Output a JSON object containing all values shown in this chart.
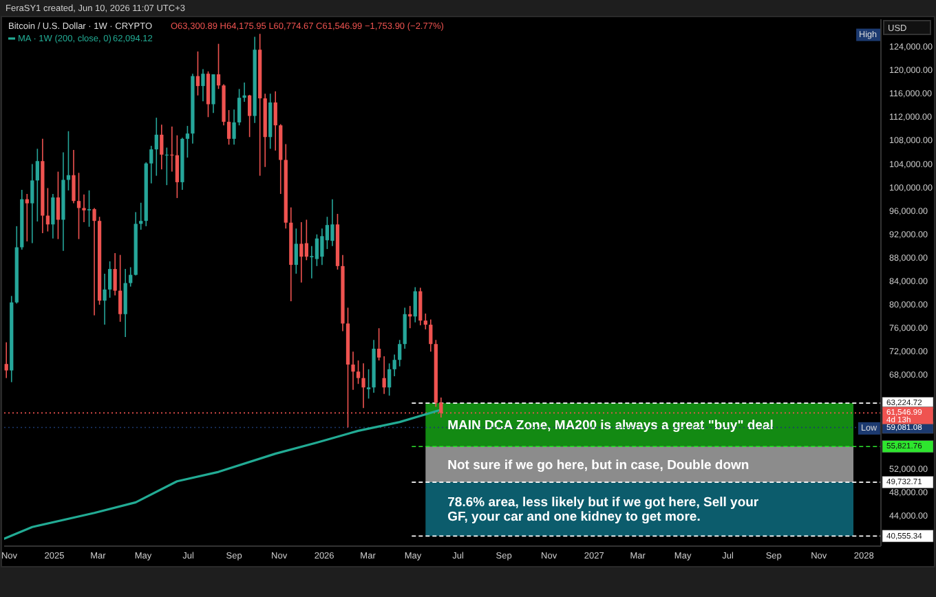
{
  "chart_data": {
    "type": "candlestick",
    "title": "Bitcoin / U.S. Dollar · 1W · CRYPTO",
    "subtitle": "O63,300.89 H64,175.95 L60,774.67 C61,546.99 −1,753.90 (−2.77%)",
    "x": [
      "2024-10-28",
      "2024-11-04",
      "2024-11-11",
      "2024-11-18",
      "2024-11-25",
      "2024-12-02",
      "2024-12-09",
      "2024-12-16",
      "2024-12-23",
      "2024-12-30",
      "2025-01-06",
      "2025-01-13",
      "2025-01-20",
      "2025-01-27",
      "2025-02-03",
      "2025-02-10",
      "2025-02-17",
      "2025-02-24",
      "2025-03-03",
      "2025-03-10",
      "2025-03-17",
      "2025-03-24",
      "2025-03-31",
      "2025-04-07",
      "2025-04-14",
      "2025-04-21",
      "2025-04-28",
      "2025-05-05",
      "2025-05-12",
      "2025-05-19",
      "2025-05-26",
      "2025-06-02",
      "2025-06-09",
      "2025-06-16",
      "2025-06-23",
      "2025-06-30",
      "2025-07-07",
      "2025-07-14",
      "2025-07-21",
      "2025-07-28",
      "2025-08-04",
      "2025-08-11",
      "2025-08-18",
      "2025-08-25",
      "2025-09-01",
      "2025-09-08",
      "2025-09-15",
      "2025-09-22",
      "2025-09-29",
      "2025-10-06",
      "2025-10-13",
      "2025-10-20",
      "2025-10-27",
      "2025-11-03",
      "2025-11-10",
      "2025-11-17",
      "2025-11-24",
      "2025-12-01",
      "2025-12-08",
      "2025-12-15",
      "2025-12-22",
      "2025-12-29",
      "2026-01-05",
      "2026-01-12",
      "2026-01-19",
      "2026-01-26",
      "2026-02-02",
      "2026-02-09",
      "2026-02-16",
      "2026-02-23",
      "2026-03-02",
      "2026-03-09",
      "2026-03-16",
      "2026-03-23",
      "2026-03-30",
      "2026-04-06",
      "2026-04-13",
      "2026-04-20",
      "2026-04-27",
      "2026-05-04",
      "2026-05-11",
      "2026-05-18",
      "2026-05-25",
      "2026-06-01",
      "2026-06-08"
    ],
    "ohlc": [
      [
        69900,
        73600,
        67500,
        68800
      ],
      [
        68800,
        81500,
        66800,
        80400
      ],
      [
        80400,
        93400,
        80200,
        89800
      ],
      [
        89800,
        99600,
        89400,
        98000
      ],
      [
        98000,
        98900,
        90800,
        97300
      ],
      [
        97300,
        104000,
        90500,
        101200
      ],
      [
        101200,
        106600,
        94200,
        104500
      ],
      [
        104500,
        108300,
        92200,
        95200
      ],
      [
        95200,
        99900,
        92500,
        93700
      ],
      [
        93700,
        98900,
        91300,
        98300
      ],
      [
        98300,
        102700,
        91200,
        94500
      ],
      [
        94500,
        106000,
        89200,
        101300
      ],
      [
        101300,
        109600,
        99500,
        102100
      ],
      [
        102100,
        106400,
        97300,
        97700
      ],
      [
        97700,
        102500,
        91200,
        96500
      ],
      [
        96500,
        98800,
        94100,
        96100
      ],
      [
        96100,
        99500,
        93300,
        96300
      ],
      [
        96300,
        96500,
        78200,
        94300
      ],
      [
        94300,
        95000,
        80000,
        80700
      ],
      [
        80700,
        85300,
        76600,
        82600
      ],
      [
        82600,
        87400,
        81200,
        86100
      ],
      [
        86100,
        88800,
        81600,
        82400
      ],
      [
        82400,
        88500,
        77100,
        78400
      ],
      [
        78400,
        86100,
        74500,
        83700
      ],
      [
        83700,
        86400,
        83100,
        85100
      ],
      [
        85100,
        95800,
        85000,
        93800
      ],
      [
        93800,
        97400,
        92800,
        94300
      ],
      [
        94300,
        104300,
        93400,
        104100
      ],
      [
        104100,
        107100,
        100700,
        106500
      ],
      [
        106500,
        111900,
        102000,
        109000
      ],
      [
        109000,
        110700,
        103100,
        105600
      ],
      [
        105600,
        106800,
        100400,
        105600
      ],
      [
        105600,
        110400,
        102700,
        105500
      ],
      [
        105500,
        108900,
        98200,
        100900
      ],
      [
        100900,
        108500,
        99600,
        108300
      ],
      [
        108300,
        110500,
        105100,
        109200
      ],
      [
        109200,
        119400,
        107500,
        119000
      ],
      [
        119000,
        123200,
        115700,
        117300
      ],
      [
        117300,
        120200,
        114700,
        119400
      ],
      [
        119400,
        119800,
        112000,
        114200
      ],
      [
        114200,
        119300,
        112700,
        119300
      ],
      [
        119300,
        124500,
        116800,
        117400
      ],
      [
        117400,
        117600,
        110600,
        111200
      ],
      [
        111200,
        113200,
        107300,
        108300
      ],
      [
        108300,
        113300,
        107300,
        111100
      ],
      [
        111100,
        116800,
        110600,
        115300
      ],
      [
        115300,
        117900,
        114600,
        115700
      ],
      [
        115700,
        115800,
        108600,
        112200
      ],
      [
        112200,
        125700,
        111000,
        123500
      ],
      [
        123500,
        126200,
        102000,
        115200
      ],
      [
        115200,
        116000,
        103500,
        108600
      ],
      [
        108600,
        116000,
        106600,
        114500
      ],
      [
        114500,
        116400,
        106300,
        110600
      ],
      [
        110600,
        110800,
        98900,
        104700
      ],
      [
        104700,
        107400,
        93000,
        94000
      ],
      [
        94000,
        96600,
        80600,
        86800
      ],
      [
        86800,
        93000,
        85300,
        90400
      ],
      [
        90400,
        94100,
        83800,
        88200
      ],
      [
        90500,
        94500,
        87600,
        88200
      ],
      [
        88100,
        90000,
        84500,
        88300
      ],
      [
        87800,
        92000,
        86600,
        91300
      ],
      [
        88200,
        93000,
        86800,
        91700
      ],
      [
        91000,
        95000,
        89500,
        93600
      ],
      [
        90900,
        98000,
        90000,
        93700
      ],
      [
        93700,
        95500,
        86000,
        86600
      ],
      [
        86600,
        88500,
        75500,
        76800
      ],
      [
        76800,
        79500,
        59081.08,
        69800
      ],
      [
        69800,
        72000,
        65500,
        68600
      ],
      [
        68600,
        70500,
        66500,
        67500
      ],
      [
        67500,
        70000,
        62400,
        65900
      ],
      [
        65600,
        69000,
        64000,
        65900
      ],
      [
        65900,
        74000,
        65000,
        72500
      ],
      [
        72500,
        76000,
        70500,
        71000
      ],
      [
        67500,
        71200,
        64800,
        65900
      ],
      [
        65900,
        70000,
        64500,
        69000
      ],
      [
        69000,
        71500,
        67800,
        70600
      ],
      [
        70600,
        74000,
        69500,
        73300
      ],
      [
        73300,
        79500,
        72500,
        78400
      ],
      [
        78400,
        79800,
        76000,
        78000
      ],
      [
        78000,
        83000,
        77000,
        82300
      ],
      [
        82300,
        82900,
        76500,
        77300
      ],
      [
        77300,
        78500,
        75800,
        76600
      ],
      [
        76600,
        77500,
        72000,
        73300
      ],
      [
        73300,
        74000,
        62600,
        63300
      ],
      [
        63300.89,
        64175.95,
        60774.67,
        61546.99
      ]
    ],
    "colors": [
      "#ef5350",
      "#26a69a",
      "#26a69a",
      "#26a69a",
      "#ef5350",
      "#26a69a",
      "#26a69a",
      "#ef5350",
      "#ef5350",
      "#26a69a",
      "#ef5350",
      "#26a69a",
      "#26a69a",
      "#ef5350",
      "#ef5350",
      "#ef5350",
      "#26a69a",
      "#ef5350",
      "#ef5350",
      "#26a69a",
      "#26a69a",
      "#ef5350",
      "#ef5350",
      "#26a69a",
      "#26a69a",
      "#26a69a",
      "#26a69a",
      "#26a69a",
      "#26a69a",
      "#26a69a",
      "#ef5350",
      "#26a69a",
      "#ef5350",
      "#ef5350",
      "#26a69a",
      "#26a69a",
      "#26a69a",
      "#ef5350",
      "#26a69a",
      "#ef5350",
      "#26a69a",
      "#ef5350",
      "#ef5350",
      "#ef5350",
      "#26a69a",
      "#26a69a",
      "#26a69a",
      "#ef5350",
      "#26a69a",
      "#ef5350",
      "#ef5350",
      "#26a69a",
      "#ef5350",
      "#ef5350",
      "#ef5350",
      "#ef5350",
      "#26a69a",
      "#ef5350",
      "#ef5350",
      "#26a69a",
      "#26a69a",
      "#26a69a",
      "#26a69a",
      "#26a69a",
      "#ef5350",
      "#ef5350",
      "#ef5350",
      "#ef5350",
      "#ef5350",
      "#ef5350",
      "#26a69a",
      "#26a69a",
      "#ef5350",
      "#ef5350",
      "#26a69a",
      "#26a69a",
      "#26a69a",
      "#26a69a",
      "#ef5350",
      "#26a69a",
      "#ef5350",
      "#ef5350",
      "#ef5350",
      "#ef5350",
      "#ef5350"
    ],
    "series": [
      {
        "type": "line",
        "name": "MA · 1W (200, close, 0)",
        "color": "#22ab94",
        "x": [
          "2024-10-25",
          "2024-12-02",
          "2025-02-24",
          "2025-04-21",
          "2025-06-16",
          "2025-08-11",
          "2025-10-27",
          "2025-12-22",
          "2026-02-16",
          "2026-04-13",
          "2026-06-08"
        ],
        "values": [
          40100,
          42100,
          44500,
          46300,
          49900,
          51500,
          54600,
          56500,
          58500,
          60000,
          62100
        ]
      }
    ],
    "xlim": [
      "2024-10-25",
      "2028-01-24"
    ],
    "ylim": [
      38840,
      128690
    ],
    "xticks": [
      {
        "value": "2024-11-01",
        "label": "Nov"
      },
      {
        "value": "2025-01-01",
        "label": "2025"
      },
      {
        "value": "2025-03-01",
        "label": "Mar"
      },
      {
        "value": "2025-05-01",
        "label": "May"
      },
      {
        "value": "2025-07-01",
        "label": "Jul"
      },
      {
        "value": "2025-09-01",
        "label": "Sep"
      },
      {
        "value": "2025-11-01",
        "label": "Nov"
      },
      {
        "value": "2026-01-01",
        "label": "2026"
      },
      {
        "value": "2026-03-01",
        "label": "Mar"
      },
      {
        "value": "2026-05-01",
        "label": "May"
      },
      {
        "value": "2026-07-01",
        "label": "Jul"
      },
      {
        "value": "2026-09-01",
        "label": "Sep"
      },
      {
        "value": "2026-11-01",
        "label": "Nov"
      },
      {
        "value": "2027-01-01",
        "label": "2027"
      },
      {
        "value": "2027-03-01",
        "label": "Mar"
      },
      {
        "value": "2027-05-01",
        "label": "May"
      },
      {
        "value": "2027-07-01",
        "label": "Jul"
      },
      {
        "value": "2027-09-01",
        "label": "Sep"
      },
      {
        "value": "2027-11-01",
        "label": "Nov"
      },
      {
        "value": "2028-01-01",
        "label": "2028"
      }
    ],
    "yticks": [
      {
        "value": 124000,
        "label": "124,000.00"
      },
      {
        "value": 120000,
        "label": "120,000.00"
      },
      {
        "value": 116000,
        "label": "116,000.00"
      },
      {
        "value": 112000,
        "label": "112,000.00"
      },
      {
        "value": 108000,
        "label": "108,000.00"
      },
      {
        "value": 104000,
        "label": "104,000.00"
      },
      {
        "value": 100000,
        "label": "100,000.00"
      },
      {
        "value": 96000,
        "label": "96,000.00"
      },
      {
        "value": 92000,
        "label": "92,000.00"
      },
      {
        "value": 88000,
        "label": "88,000.00"
      },
      {
        "value": 84000,
        "label": "84,000.00"
      },
      {
        "value": 80000,
        "label": "80,000.00"
      },
      {
        "value": 76000,
        "label": "76,000.00"
      },
      {
        "value": 72000,
        "label": "72,000.00"
      },
      {
        "value": 68000,
        "label": "68,000.00"
      },
      {
        "value": 52000,
        "label": "52,000.00"
      },
      {
        "value": 48000,
        "label": "48,000.00"
      },
      {
        "value": 44000,
        "label": "44,000.00"
      }
    ],
    "bands": [
      {
        "axis": "y",
        "from": 55821.76,
        "to": 63224.72,
        "label": "MAIN DCA Zone, MA200 is always a great \"buy\" deal",
        "color": "#138a13"
      },
      {
        "axis": "y",
        "from": 49732.71,
        "to": 55821.76,
        "label": "Not sure if we go here, but in case, Double down",
        "color": "#8c8c8c"
      },
      {
        "axis": "y",
        "from": 40555.34,
        "to": 49732.71,
        "label": "78.6% area, less likely but if we got here, Sell your GF, your car and one kidney to get more.",
        "color": "#0c5c6c"
      }
    ],
    "ref_lines": [
      {
        "axis": "y",
        "value": 63224.72,
        "label": "63,224.72",
        "color": "#ffffff",
        "line_style": "dashed"
      },
      {
        "axis": "y",
        "value": 61546.99,
        "label": "61,546.99\n4d 13h",
        "color": "#ef5350",
        "line_style": "dotted"
      },
      {
        "axis": "y",
        "value": 59081.08,
        "label": "59,081.08",
        "color": "#1c3a70",
        "line_style": "dotted"
      },
      {
        "axis": "y",
        "value": 55821.76,
        "label": "55,821.76",
        "color": "#2ee62e",
        "line_style": "dashed"
      },
      {
        "axis": "y",
        "value": 49732.71,
        "label": "49,732.71",
        "color": "#ffffff",
        "line_style": "dashed"
      },
      {
        "axis": "y",
        "value": 40555.34,
        "label": "40,555.34",
        "color": "#ffffff",
        "line_style": "dashed"
      }
    ],
    "annotations": [
      "FeraSY1 created, Jun 10, 2026 11:07 UTC+3",
      "USD",
      "62,094.12",
      {
        "text": "High",
        "y": 126200
      },
      {
        "text": "Low",
        "y": 59081.08
      }
    ],
    "legend": "top left"
  }
}
